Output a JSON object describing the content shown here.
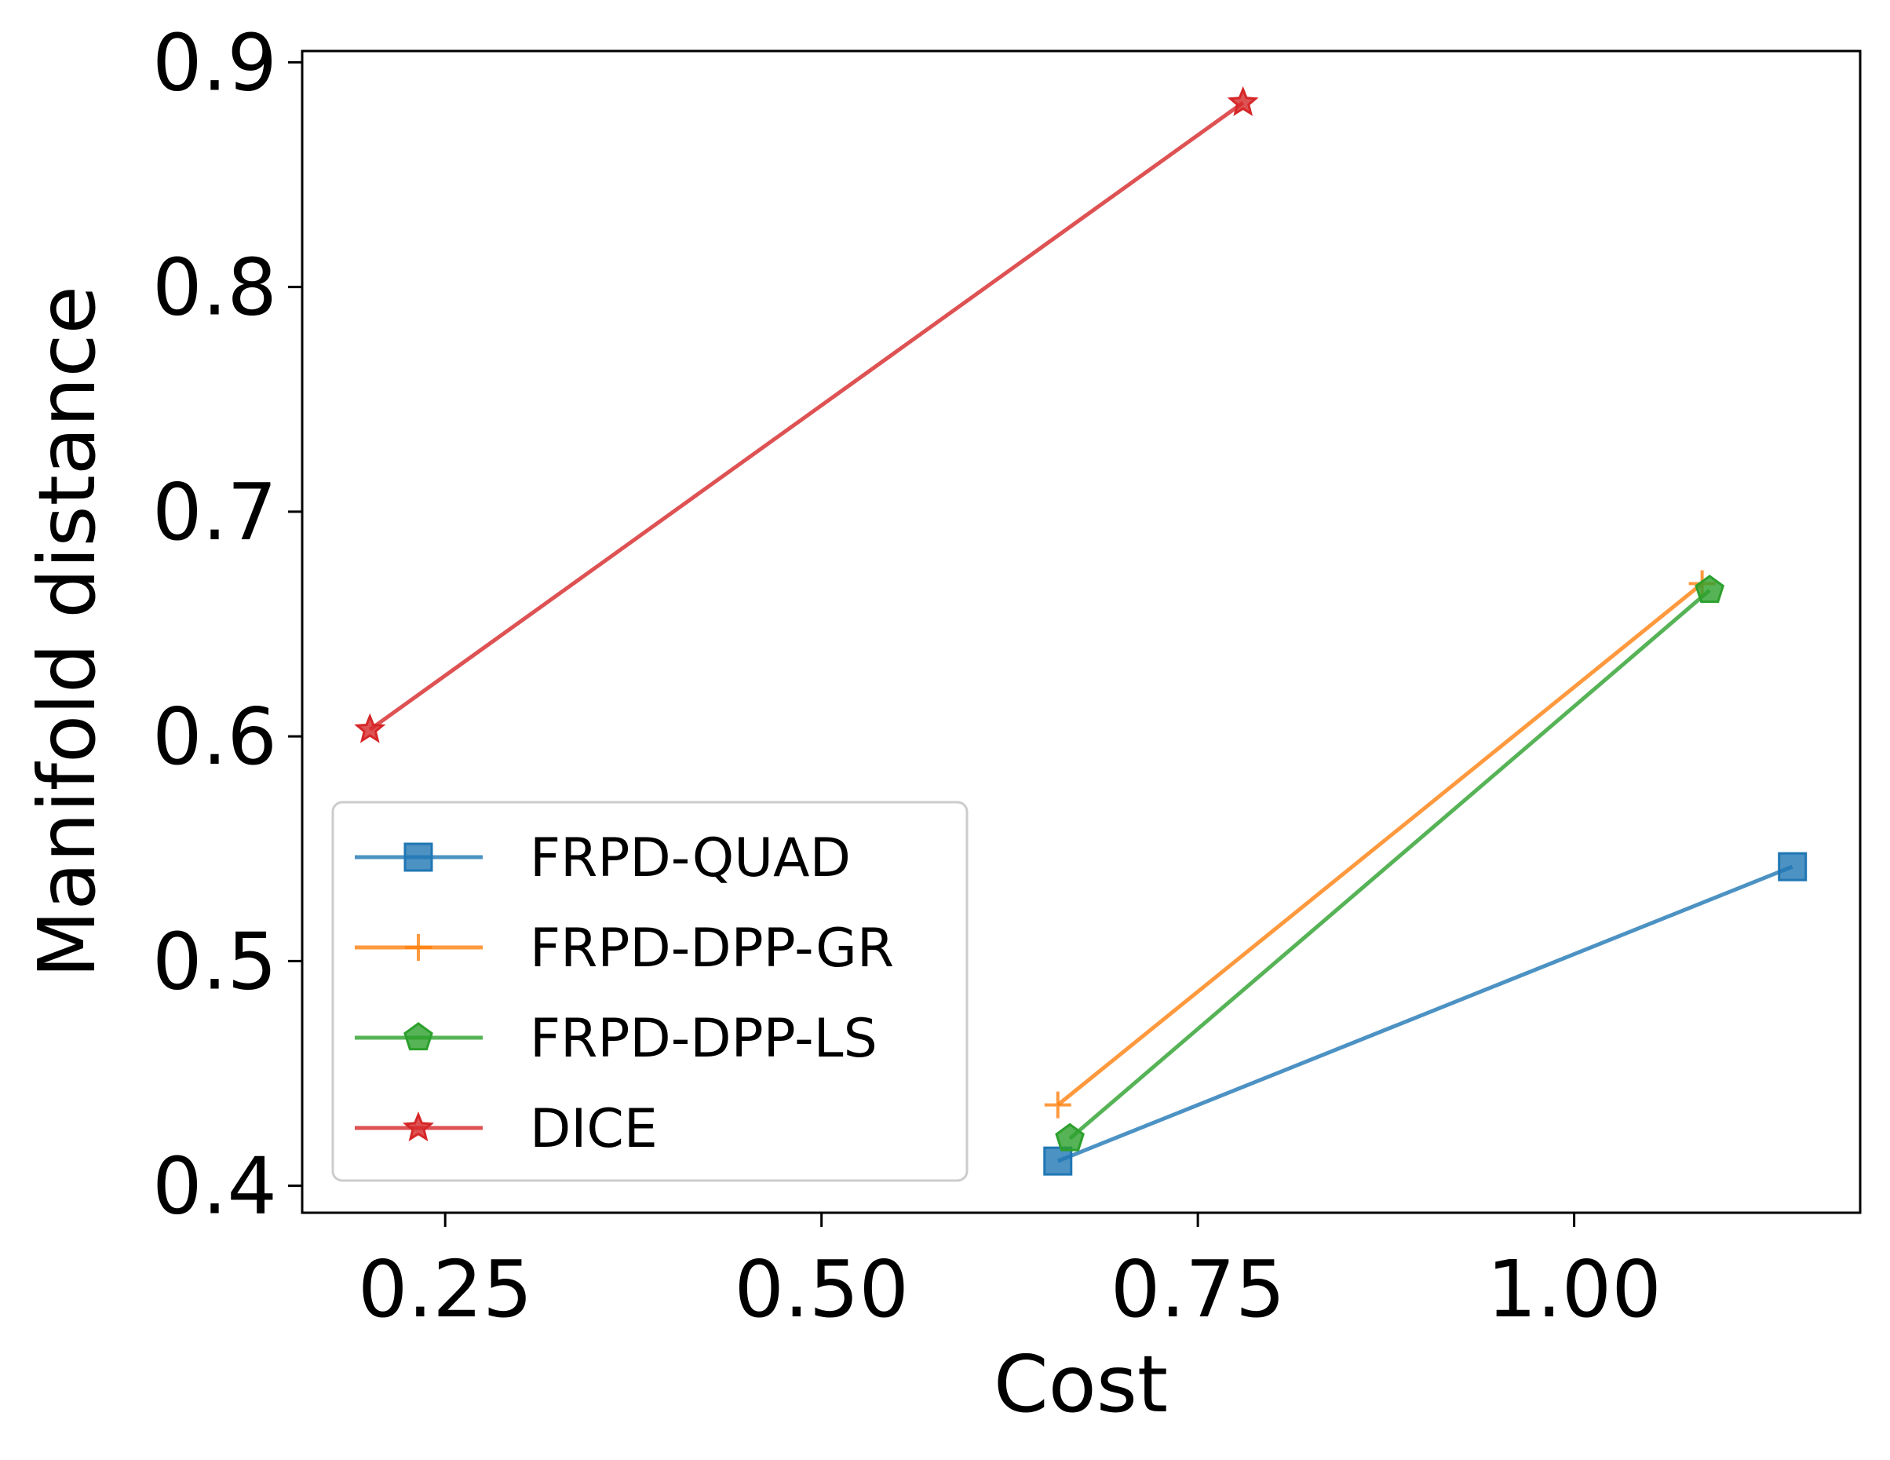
{
  "chart_data": {
    "type": "line",
    "title": "",
    "xlabel": "Cost",
    "ylabel": "Manifold distance",
    "xlim": [
      0.155,
      1.19
    ],
    "ylim": [
      0.388,
      0.905
    ],
    "xticks": [
      {
        "value": 0.25,
        "label": "0.25"
      },
      {
        "value": 0.5,
        "label": "0.50"
      },
      {
        "value": 0.75,
        "label": "0.75"
      },
      {
        "value": 1.0,
        "label": "1.00"
      }
    ],
    "yticks": [
      {
        "value": 0.4,
        "label": "0.4"
      },
      {
        "value": 0.5,
        "label": "0.5"
      },
      {
        "value": 0.6,
        "label": "0.6"
      },
      {
        "value": 0.7,
        "label": "0.7"
      },
      {
        "value": 0.8,
        "label": "0.8"
      },
      {
        "value": 0.9,
        "label": "0.9"
      }
    ],
    "grid": false,
    "legend_position": "lower-left",
    "series": [
      {
        "name": "FRPD-QUAD",
        "color": "#1f77b4",
        "marker": "square",
        "x": [
          0.657,
          1.145
        ],
        "y": [
          0.411,
          0.542
        ]
      },
      {
        "name": "FRPD-DPP-GR",
        "color": "#ff7f0e",
        "marker": "plus",
        "x": [
          0.657,
          1.085
        ],
        "y": [
          0.436,
          0.668
        ]
      },
      {
        "name": "FRPD-DPP-LS",
        "color": "#2ca02c",
        "marker": "pentagon",
        "x": [
          0.665,
          1.09
        ],
        "y": [
          0.421,
          0.665
        ]
      },
      {
        "name": "DICE",
        "color": "#d62728",
        "marker": "star",
        "x": [
          0.2,
          0.78
        ],
        "y": [
          0.603,
          0.882
        ]
      }
    ]
  }
}
